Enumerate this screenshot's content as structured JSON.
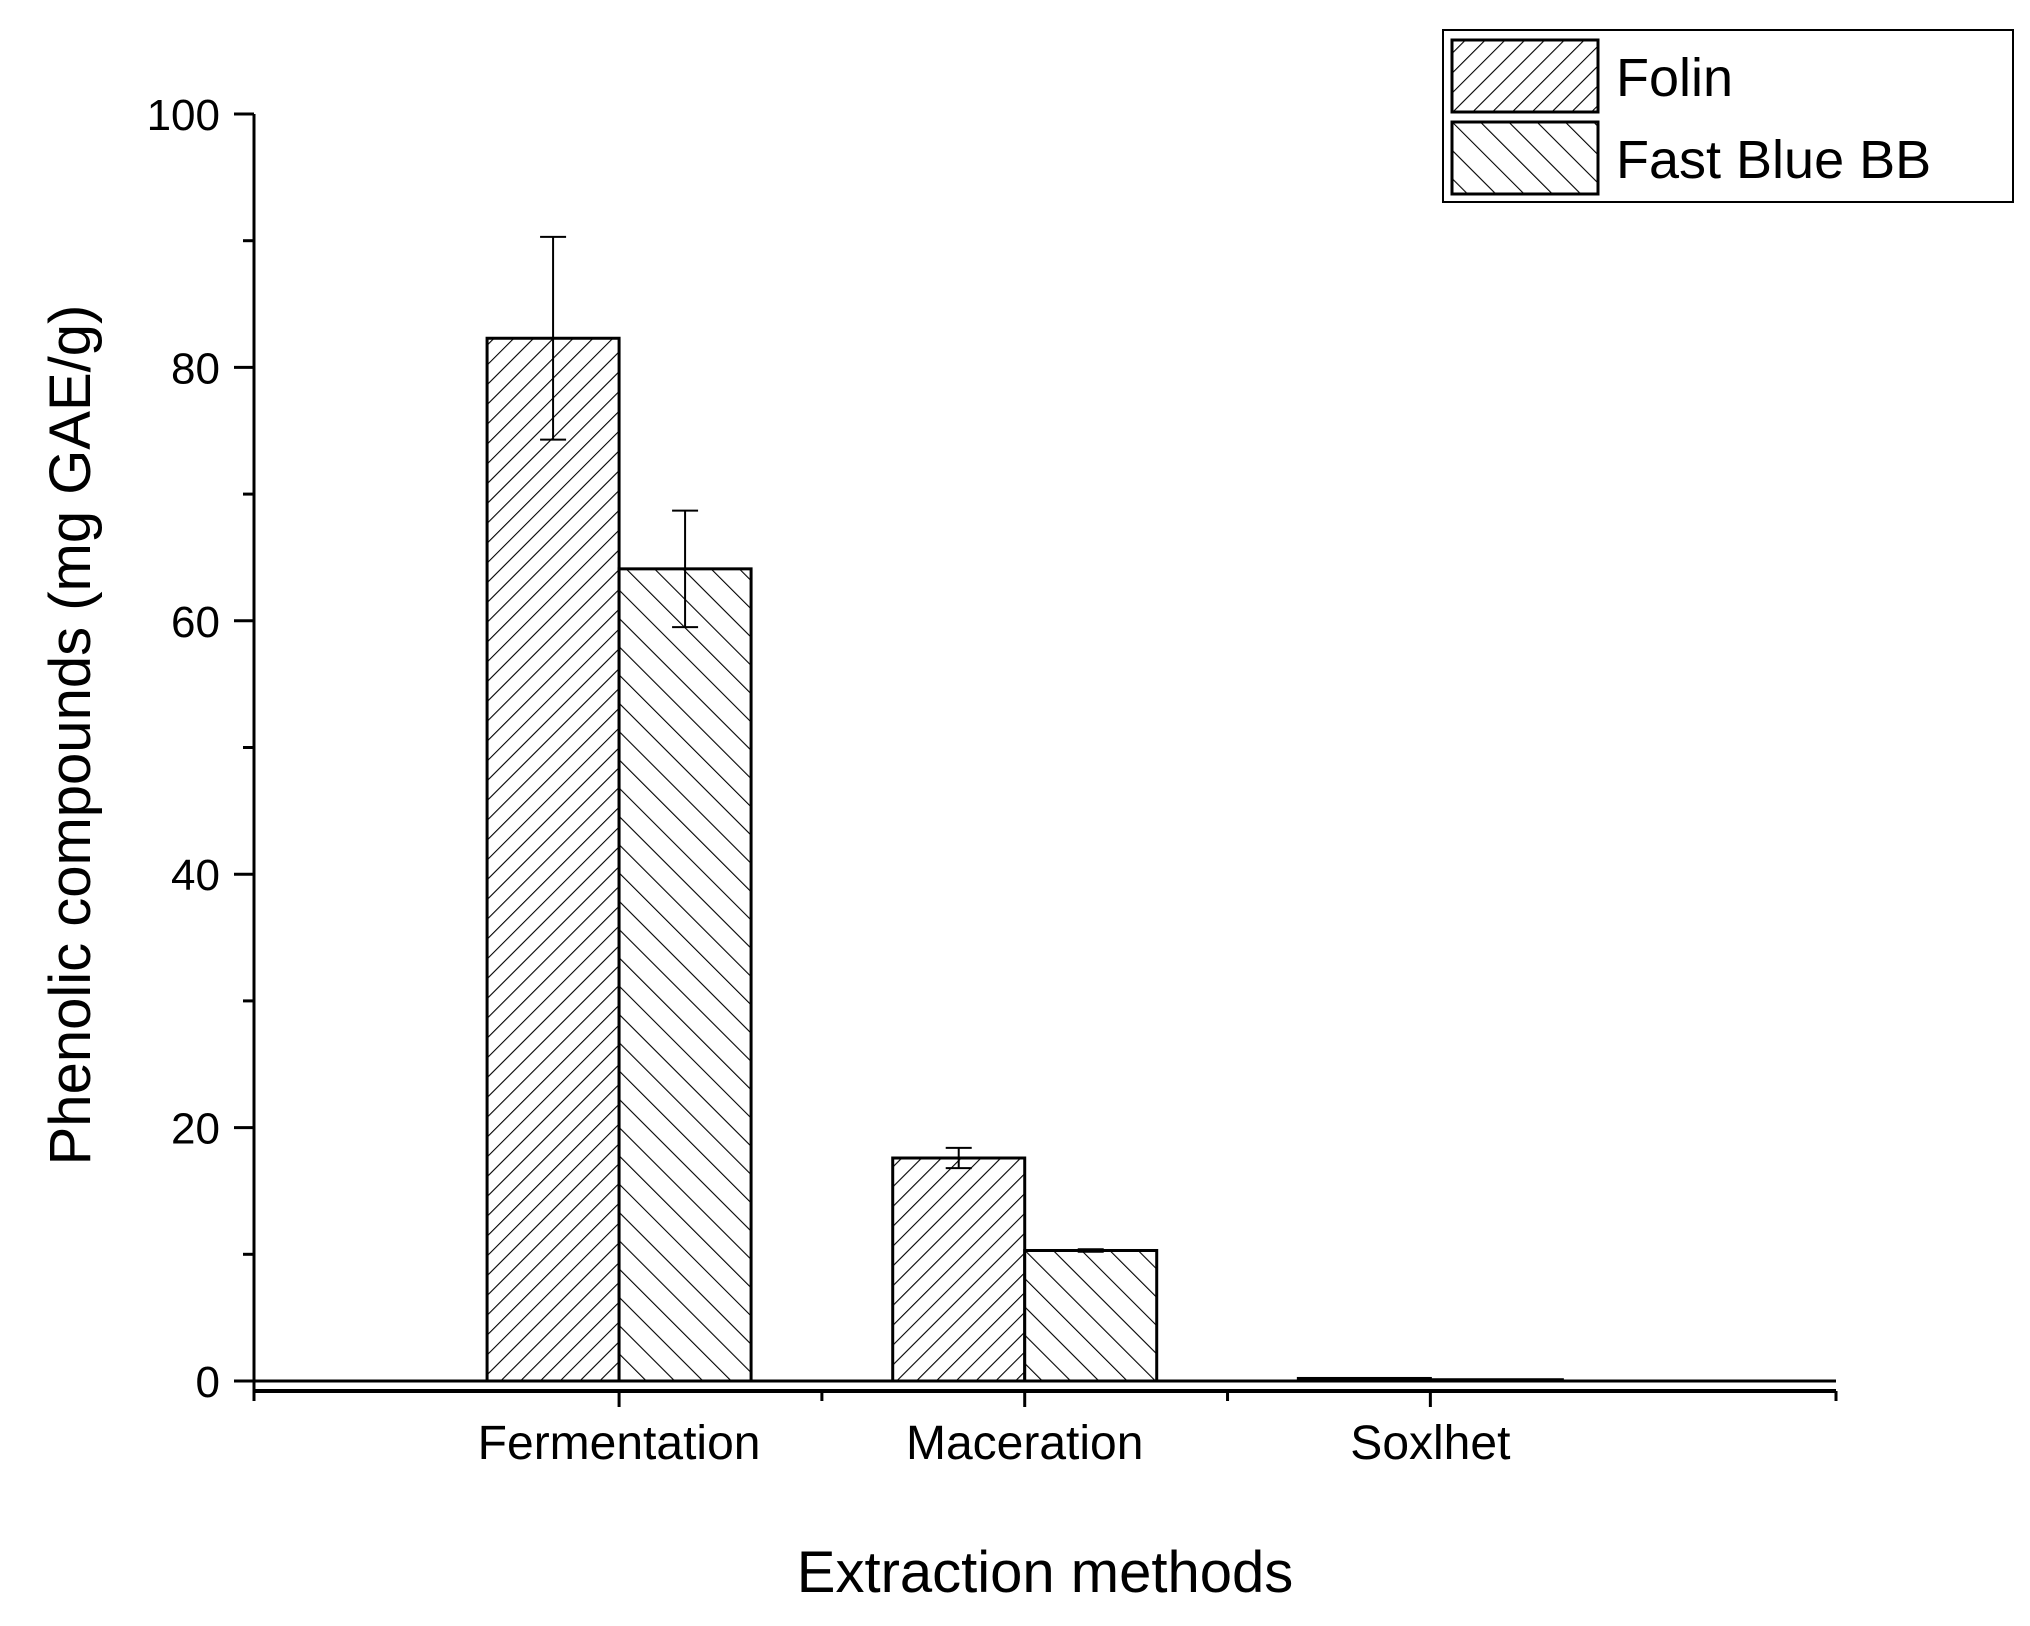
{
  "chart_data": {
    "type": "bar",
    "title": "",
    "xlabel": "Extraction methods",
    "ylabel": "Phenolic compounds (mg GAE/g)",
    "categories": [
      "Fermentation",
      "Maceration",
      "Soxlhet"
    ],
    "series": [
      {
        "name": "Folin",
        "values": [
          82.3,
          17.6,
          0.2
        ],
        "errors": [
          8.0,
          0.8,
          0.0
        ],
        "pattern": "diagonal-forward"
      },
      {
        "name": "Fast Blue BB",
        "values": [
          64.1,
          10.3,
          0.1
        ],
        "errors": [
          4.6,
          0.1,
          0.0
        ],
        "pattern": "diagonal-backward"
      }
    ],
    "ylim": [
      0,
      100
    ],
    "yticks": [
      0,
      20,
      40,
      60,
      80,
      100
    ],
    "ytick_labels": [
      "0",
      "20",
      "40",
      "60",
      "80",
      "100"
    ],
    "minor_yticks": true,
    "grid": false,
    "legend_position": "top-right",
    "colors": {
      "bar_fill": "#ffffff",
      "stroke": "#000000",
      "background": "#ffffff"
    }
  }
}
